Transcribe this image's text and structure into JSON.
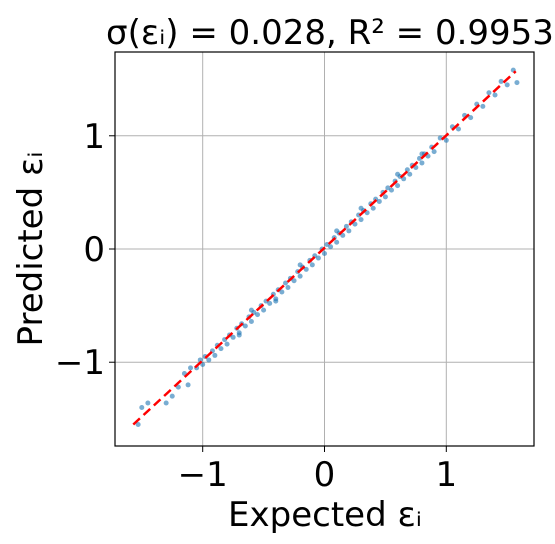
{
  "chart_data": {
    "type": "scatter",
    "title": "σ(εᵢ) = 0.028, R² = 0.9953",
    "xlabel": "Expected εᵢ",
    "ylabel": "Predicted εᵢ",
    "xlim": [
      -1.72,
      1.72
    ],
    "ylim": [
      -1.74,
      1.74
    ],
    "xticks": [
      -1,
      0,
      1
    ],
    "yticks": [
      -1,
      0,
      1
    ],
    "xtick_labels": [
      "−1",
      "0",
      "1"
    ],
    "ytick_labels": [
      "−1",
      "0",
      "1"
    ],
    "grid": true,
    "series": [
      {
        "kind": "scatter",
        "color": "#1f77b4",
        "points": [
          [
            -1.53,
            -1.55
          ],
          [
            -1.5,
            -1.4
          ],
          [
            -1.45,
            -1.36
          ],
          [
            -1.3,
            -1.36
          ],
          [
            -1.25,
            -1.3
          ],
          [
            -1.2,
            -1.22
          ],
          [
            -1.15,
            -1.1
          ],
          [
            -1.12,
            -1.2
          ],
          [
            -1.1,
            -1.05
          ],
          [
            -1.05,
            -1.05
          ],
          [
            -1.02,
            -0.98
          ],
          [
            -1.0,
            -1.02
          ],
          [
            -0.98,
            -0.95
          ],
          [
            -0.95,
            -0.98
          ],
          [
            -0.92,
            -0.9
          ],
          [
            -0.9,
            -0.94
          ],
          [
            -0.88,
            -0.85
          ],
          [
            -0.85,
            -0.88
          ],
          [
            -0.82,
            -0.8
          ],
          [
            -0.8,
            -0.84
          ],
          [
            -0.78,
            -0.76
          ],
          [
            -0.75,
            -0.78
          ],
          [
            -0.72,
            -0.7
          ],
          [
            -0.7,
            -0.74
          ],
          [
            -0.68,
            -0.66
          ],
          [
            -0.65,
            -0.68
          ],
          [
            -0.62,
            -0.6
          ],
          [
            -0.6,
            -0.64
          ],
          [
            -0.58,
            -0.56
          ],
          [
            -0.55,
            -0.58
          ],
          [
            -0.52,
            -0.5
          ],
          [
            -0.5,
            -0.54
          ],
          [
            -0.48,
            -0.46
          ],
          [
            -0.45,
            -0.48
          ],
          [
            -0.42,
            -0.4
          ],
          [
            -0.4,
            -0.44
          ],
          [
            -0.38,
            -0.36
          ],
          [
            -0.35,
            -0.38
          ],
          [
            -0.32,
            -0.3
          ],
          [
            -0.3,
            -0.34
          ],
          [
            -0.28,
            -0.26
          ],
          [
            -0.25,
            -0.28
          ],
          [
            -0.22,
            -0.2
          ],
          [
            -0.2,
            -0.24
          ],
          [
            -0.18,
            -0.16
          ],
          [
            -0.15,
            -0.18
          ],
          [
            -0.12,
            -0.1
          ],
          [
            -0.1,
            -0.14
          ],
          [
            -0.08,
            -0.06
          ],
          [
            -0.05,
            -0.08
          ],
          [
            -0.02,
            0.0
          ],
          [
            0.0,
            -0.04
          ],
          [
            0.02,
            0.04
          ],
          [
            0.05,
            0.02
          ],
          [
            0.08,
            0.1
          ],
          [
            0.1,
            0.06
          ],
          [
            0.12,
            0.14
          ],
          [
            0.15,
            0.12
          ],
          [
            0.18,
            0.2
          ],
          [
            0.2,
            0.16
          ],
          [
            0.22,
            0.24
          ],
          [
            0.25,
            0.22
          ],
          [
            0.28,
            0.3
          ],
          [
            0.3,
            0.26
          ],
          [
            0.32,
            0.34
          ],
          [
            0.35,
            0.32
          ],
          [
            0.38,
            0.4
          ],
          [
            0.4,
            0.36
          ],
          [
            0.42,
            0.44
          ],
          [
            0.45,
            0.42
          ],
          [
            0.48,
            0.5
          ],
          [
            0.5,
            0.46
          ],
          [
            0.52,
            0.54
          ],
          [
            0.55,
            0.52
          ],
          [
            0.58,
            0.6
          ],
          [
            0.6,
            0.56
          ],
          [
            0.62,
            0.64
          ],
          [
            0.65,
            0.62
          ],
          [
            0.68,
            0.7
          ],
          [
            0.7,
            0.66
          ],
          [
            0.72,
            0.74
          ],
          [
            0.75,
            0.72
          ],
          [
            0.78,
            0.8
          ],
          [
            0.8,
            0.76
          ],
          [
            0.82,
            0.84
          ],
          [
            0.85,
            0.82
          ],
          [
            0.88,
            0.9
          ],
          [
            0.9,
            0.86
          ],
          [
            0.95,
            0.98
          ],
          [
            1.0,
            0.96
          ],
          [
            1.05,
            1.08
          ],
          [
            1.1,
            1.06
          ],
          [
            1.15,
            1.18
          ],
          [
            1.2,
            1.16
          ],
          [
            1.25,
            1.28
          ],
          [
            1.3,
            1.26
          ],
          [
            1.35,
            1.38
          ],
          [
            1.4,
            1.36
          ],
          [
            1.45,
            1.48
          ],
          [
            1.5,
            1.45
          ],
          [
            1.55,
            1.58
          ],
          [
            1.58,
            1.47
          ],
          [
            -0.6,
            -0.54
          ],
          [
            -0.4,
            -0.46
          ],
          [
            0.3,
            0.36
          ],
          [
            0.6,
            0.66
          ],
          [
            -0.2,
            -0.14
          ],
          [
            0.1,
            0.16
          ],
          [
            -0.7,
            -0.76
          ],
          [
            0.8,
            0.84
          ]
        ]
      },
      {
        "kind": "line",
        "style": "dashed",
        "color": "#ff0000",
        "x": [
          -1.57,
          1.57
        ],
        "y": [
          -1.55,
          1.57
        ]
      }
    ]
  }
}
